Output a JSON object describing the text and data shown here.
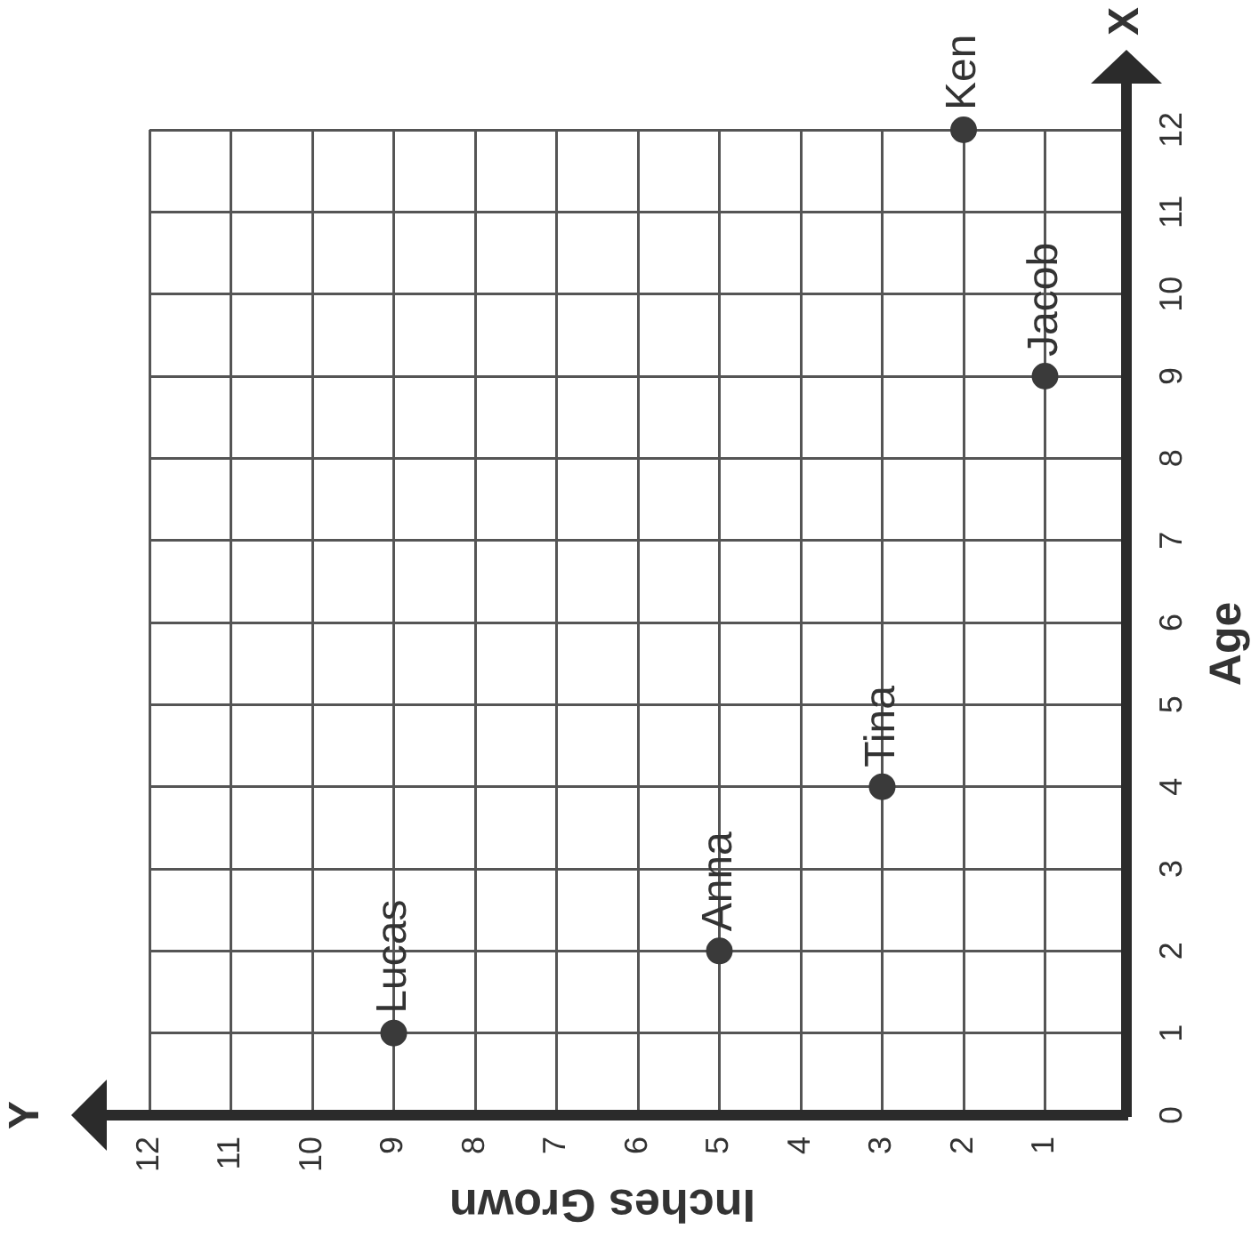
{
  "chart_data": {
    "type": "scatter",
    "xlabel": "Inches Grown",
    "ylabel": "Age",
    "x": [
      9,
      5,
      3,
      1,
      2
    ],
    "values": [
      1,
      2,
      4,
      9,
      12
    ],
    "color": "#3a3a3a",
    "marker": "circle",
    "xlim": [
      12,
      0
    ],
    "xticks": [
      12,
      11,
      10,
      9,
      8,
      7,
      6,
      5,
      4,
      3,
      2,
      1
    ],
    "ylim": [
      0,
      12
    ],
    "yticks": [
      0,
      1,
      2,
      3,
      4,
      5,
      6,
      7,
      8,
      9,
      10,
      11,
      12
    ],
    "grid": true,
    "annotations": [
      {
        "text": "Lucas",
        "x": 9,
        "y": 1
      },
      {
        "text": "Anna",
        "x": 5,
        "y": 2
      },
      {
        "text": "Tina",
        "x": 3,
        "y": 4
      },
      {
        "text": "Jacob",
        "x": 1,
        "y": 9
      },
      {
        "text": "Ken",
        "x": 2,
        "y": 12
      },
      "X",
      "Y"
    ]
  }
}
